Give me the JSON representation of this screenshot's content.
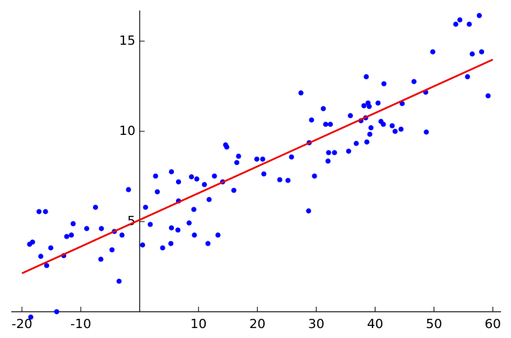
{
  "chart_data": {
    "type": "scatter",
    "xlim": [
      -21.8,
      61.4
    ],
    "ylim": [
      -0.3,
      16.7
    ],
    "xticks": [
      -20,
      -10,
      10,
      20,
      30,
      40,
      50,
      60
    ],
    "yticks": [
      5,
      10,
      15
    ],
    "series": [
      {
        "color": "#0000ff",
        "x": [
          -18.5,
          -18.7,
          -18.2,
          -17.1,
          -16.0,
          -16.8,
          -15.8,
          -15.1,
          -14.1,
          -12.9,
          -12.4,
          -11.6,
          -11.3,
          -9.0,
          -7.5,
          -6.6,
          -6.5,
          -4.7,
          -4.3,
          -3.5,
          -3.0,
          -1.9,
          0.5,
          1.0,
          1.8,
          2.7,
          3.0,
          3.9,
          5.3,
          5.4,
          5.4,
          6.5,
          6.6,
          6.6,
          8.4,
          8.8,
          9.2,
          9.3,
          9.7,
          11.0,
          11.6,
          11.8,
          12.7,
          13.3,
          14.1,
          14.6,
          14.8,
          16.0,
          16.5,
          16.8,
          19.9,
          20.9,
          21.1,
          23.8,
          25.2,
          25.8,
          27.4,
          28.7,
          28.8,
          29.2,
          29.7,
          31.2,
          31.6,
          32.0,
          32.1,
          32.4,
          33.1,
          35.5,
          35.8,
          36.8,
          37.6,
          38.1,
          38.4,
          38.5,
          38.6,
          38.8,
          39.0,
          39.1,
          39.3,
          40.5,
          41.0,
          41.4,
          41.5,
          42.9,
          43.4,
          44.4,
          44.6,
          46.6,
          48.6,
          48.7,
          49.8,
          53.7,
          54.4,
          55.7,
          56.0,
          56.5,
          57.7,
          58.1,
          59.2
        ],
        "values": [
          -0.3,
          3.74,
          3.86,
          5.55,
          5.55,
          3.07,
          2.56,
          3.54,
          0,
          3.11,
          4.17,
          4.25,
          4.88,
          4.61,
          5.79,
          2.91,
          4.61,
          3.43,
          4.45,
          1.69,
          4.25,
          6.77,
          3.7,
          5.79,
          4.84,
          7.52,
          6.65,
          3.54,
          3.78,
          4.65,
          7.76,
          4.53,
          6.14,
          7.2,
          4.92,
          7.48,
          5.67,
          4.25,
          7.36,
          7.05,
          3.78,
          6.22,
          7.52,
          4.25,
          7.2,
          9.25,
          9.13,
          6.73,
          8.27,
          8.62,
          8.46,
          8.46,
          7.64,
          7.32,
          7.28,
          8.58,
          12.13,
          5.59,
          9.37,
          10.63,
          7.52,
          11.26,
          10.39,
          8.35,
          8.82,
          10.39,
          8.82,
          8.9,
          10.87,
          9.33,
          10.59,
          11.42,
          10.75,
          13.03,
          9.41,
          11.57,
          11.38,
          9.84,
          10.2,
          11.57,
          10.55,
          10.39,
          12.64,
          10.31,
          10.0,
          10.12,
          11.54,
          12.76,
          12.17,
          9.96,
          14.41,
          15.94,
          16.18,
          13.03,
          15.94,
          14.29,
          16.42,
          14.41,
          11.97
        ]
      }
    ],
    "fit": {
      "color": "#ee0000",
      "x": [
        -20,
        60
      ],
      "values": [
        2.13,
        13.98
      ]
    }
  }
}
